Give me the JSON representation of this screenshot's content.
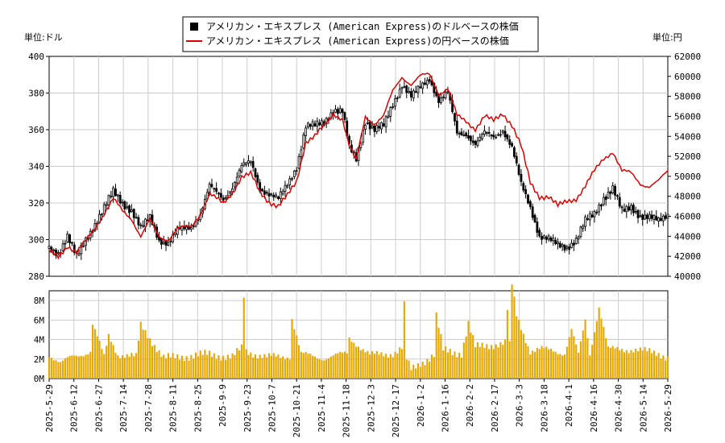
{
  "chart_data": {
    "type": "candlestick",
    "legend": [
      {
        "label": "アメリカン・エキスプレス (American Express)のドルベースの株価",
        "marker": "square",
        "color": "#000000"
      },
      {
        "label": "アメリカン・エキスプレス (American Express)の円ベースの株価",
        "marker": "line",
        "color": "#dd0000"
      }
    ],
    "legend_position": "top-center",
    "left_unit_label": "単位:ドル",
    "right_unit_label": "単位:円",
    "price_axis_left": {
      "min": 280,
      "max": 400,
      "ticks": [
        "280",
        "300",
        "320",
        "340",
        "360",
        "380",
        "400"
      ]
    },
    "price_axis_right": {
      "min": 40000,
      "max": 62000,
      "ticks": [
        "40000",
        "42000",
        "44000",
        "46000",
        "48000",
        "50000",
        "52000",
        "54000",
        "56000",
        "58000",
        "60000",
        "62000"
      ]
    },
    "volume_axis": {
      "min": 0,
      "max": 9000000,
      "ticks": [
        "0M",
        "2M",
        "4M",
        "6M",
        "8M"
      ]
    },
    "x_tick_labels": [
      "2025-5-29",
      "2025-6-12",
      "2025-6-27",
      "2025-7-14",
      "2025-7-28",
      "2025-8-11",
      "2025-8-25",
      "2025-9-9",
      "2025-9-23",
      "2025-10-7",
      "2025-10-21",
      "2025-11-4",
      "2025-11-18",
      "2025-12-3",
      "2025-12-17",
      "2026-1-2",
      "2026-1-16",
      "2026-2-2",
      "2026-2-17",
      "2026-3-3",
      "2026-3-18",
      "2026-4-1",
      "2026-4-16",
      "2026-4-30",
      "2026-5-14",
      "2026-5-29"
    ],
    "price_anchors": [
      [
        0,
        295
      ],
      [
        4,
        293
      ],
      [
        8,
        302
      ],
      [
        12,
        290
      ],
      [
        16,
        300
      ],
      [
        22,
        313
      ],
      [
        28,
        326
      ],
      [
        32,
        320
      ],
      [
        36,
        316
      ],
      [
        40,
        306
      ],
      [
        44,
        312
      ],
      [
        48,
        300
      ],
      [
        52,
        298
      ],
      [
        56,
        305
      ],
      [
        62,
        307
      ],
      [
        66,
        314
      ],
      [
        70,
        329
      ],
      [
        76,
        322
      ],
      [
        80,
        329
      ],
      [
        84,
        340
      ],
      [
        88,
        342
      ],
      [
        92,
        328
      ],
      [
        96,
        325
      ],
      [
        100,
        322
      ],
      [
        104,
        330
      ],
      [
        108,
        340
      ],
      [
        112,
        362
      ],
      [
        116,
        362
      ],
      [
        120,
        364
      ],
      [
        124,
        371
      ],
      [
        128,
        370
      ],
      [
        131,
        350
      ],
      [
        134,
        344
      ],
      [
        138,
        365
      ],
      [
        142,
        360
      ],
      [
        146,
        362
      ],
      [
        150,
        374
      ],
      [
        154,
        385
      ],
      [
        158,
        378
      ],
      [
        162,
        383
      ],
      [
        166,
        388
      ],
      [
        170,
        376
      ],
      [
        174,
        380
      ],
      [
        178,
        358
      ],
      [
        182,
        358
      ],
      [
        186,
        352
      ],
      [
        190,
        358
      ],
      [
        194,
        356
      ],
      [
        198,
        360
      ],
      [
        202,
        350
      ],
      [
        206,
        330
      ],
      [
        210,
        318
      ],
      [
        214,
        302
      ],
      [
        218,
        300
      ],
      [
        222,
        297
      ],
      [
        226,
        296
      ],
      [
        230,
        300
      ],
      [
        234,
        310
      ],
      [
        238,
        314
      ],
      [
        242,
        323
      ],
      [
        246,
        328
      ],
      [
        250,
        315
      ],
      [
        254,
        318
      ],
      [
        258,
        313
      ],
      [
        262,
        312
      ],
      [
        266,
        310
      ],
      [
        270,
        314
      ]
    ],
    "jpy_anchors": [
      [
        0,
        42400
      ],
      [
        4,
        42000
      ],
      [
        8,
        43100
      ],
      [
        12,
        42300
      ],
      [
        16,
        43500
      ],
      [
        22,
        45600
      ],
      [
        28,
        47700
      ],
      [
        32,
        46500
      ],
      [
        36,
        45800
      ],
      [
        40,
        44000
      ],
      [
        44,
        45600
      ],
      [
        48,
        43900
      ],
      [
        52,
        43700
      ],
      [
        56,
        44800
      ],
      [
        62,
        44900
      ],
      [
        66,
        46300
      ],
      [
        70,
        48300
      ],
      [
        76,
        47200
      ],
      [
        80,
        48400
      ],
      [
        84,
        50000
      ],
      [
        88,
        50200
      ],
      [
        92,
        48400
      ],
      [
        96,
        47500
      ],
      [
        100,
        47000
      ],
      [
        104,
        48000
      ],
      [
        108,
        49500
      ],
      [
        112,
        53500
      ],
      [
        116,
        54000
      ],
      [
        120,
        55000
      ],
      [
        124,
        56300
      ],
      [
        128,
        55800
      ],
      [
        131,
        53000
      ],
      [
        134,
        51500
      ],
      [
        138,
        56000
      ],
      [
        142,
        55300
      ],
      [
        146,
        56000
      ],
      [
        150,
        58500
      ],
      [
        154,
        60000
      ],
      [
        158,
        59200
      ],
      [
        162,
        60000
      ],
      [
        166,
        60200
      ],
      [
        170,
        58300
      ],
      [
        174,
        58800
      ],
      [
        178,
        56000
      ],
      [
        182,
        55500
      ],
      [
        186,
        54800
      ],
      [
        190,
        56000
      ],
      [
        194,
        55500
      ],
      [
        198,
        56300
      ],
      [
        202,
        55200
      ],
      [
        206,
        53000
      ],
      [
        210,
        49300
      ],
      [
        214,
        48000
      ],
      [
        218,
        48000
      ],
      [
        222,
        47000
      ],
      [
        226,
        47500
      ],
      [
        230,
        47800
      ],
      [
        234,
        49000
      ],
      [
        238,
        50500
      ],
      [
        242,
        51800
      ],
      [
        246,
        52500
      ],
      [
        250,
        50500
      ],
      [
        254,
        50300
      ],
      [
        258,
        49300
      ],
      [
        262,
        49000
      ],
      [
        266,
        49500
      ],
      [
        270,
        50500
      ]
    ],
    "volume_anchors_m": [
      [
        0,
        2.5
      ],
      [
        5,
        1.6
      ],
      [
        10,
        2.2
      ],
      [
        18,
        2.8
      ],
      [
        19,
        5.6
      ],
      [
        24,
        2.2
      ],
      [
        26,
        4.4
      ],
      [
        30,
        2.5
      ],
      [
        38,
        2.2
      ],
      [
        40,
        5.5
      ],
      [
        50,
        2.1
      ],
      [
        60,
        2.3
      ],
      [
        70,
        2.5
      ],
      [
        80,
        2.2
      ],
      [
        84,
        3.1
      ],
      [
        85,
        8.4
      ],
      [
        86,
        2.8
      ],
      [
        95,
        2.2
      ],
      [
        105,
        2.3
      ],
      [
        106,
        6.2
      ],
      [
        110,
        2.5
      ],
      [
        120,
        2.1
      ],
      [
        130,
        2.6
      ],
      [
        131,
        4.2
      ],
      [
        140,
        2.4
      ],
      [
        150,
        2.6
      ],
      [
        154,
        3.1
      ],
      [
        155,
        7.5
      ],
      [
        156,
        1.9
      ],
      [
        158,
        0.9
      ],
      [
        162,
        1.6
      ],
      [
        168,
        2.4
      ],
      [
        169,
        6.4
      ],
      [
        172,
        2.9
      ],
      [
        180,
        2.6
      ],
      [
        183,
        5.6
      ],
      [
        186,
        3.2
      ],
      [
        190,
        3.4
      ],
      [
        199,
        3.6
      ],
      [
        200,
        7.0
      ],
      [
        201,
        3.4
      ],
      [
        202,
        9.6
      ],
      [
        204,
        6.5
      ],
      [
        210,
        2.8
      ],
      [
        215,
        3.0
      ],
      [
        220,
        2.9
      ],
      [
        225,
        2.6
      ],
      [
        228,
        5.0
      ],
      [
        231,
        2.4
      ],
      [
        234,
        6.0
      ],
      [
        236,
        2.5
      ],
      [
        240,
        7.4
      ],
      [
        244,
        3.0
      ],
      [
        250,
        3.0
      ],
      [
        255,
        3.0
      ],
      [
        260,
        2.8
      ],
      [
        266,
        2.6
      ],
      [
        270,
        2.2
      ]
    ],
    "colors": {
      "candle": "#000000",
      "jpy_line": "#dd0000",
      "volume": "#e6a800",
      "grid": "#cccccc"
    },
    "grid": true
  }
}
